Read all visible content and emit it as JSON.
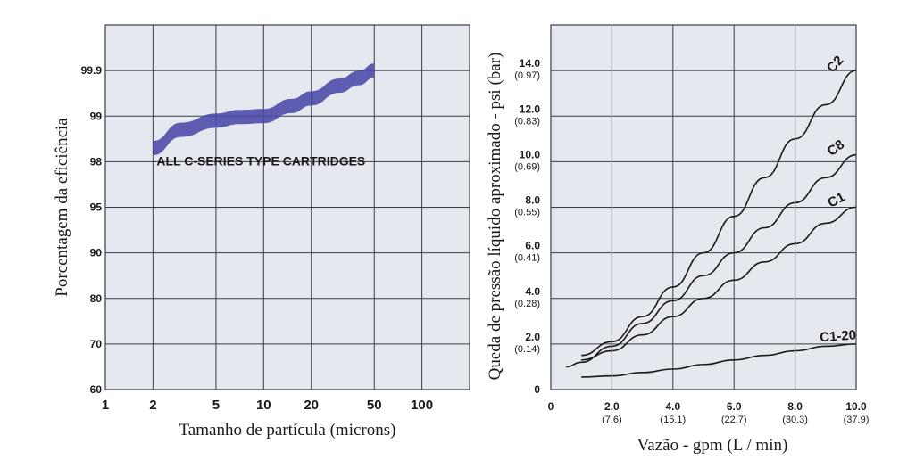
{
  "colors": {
    "plot_bg": "#e6e8ef",
    "grid": "#3a3c48",
    "band": "#4a48a8",
    "line": "#1a1a1a"
  },
  "chart_data": [
    {
      "type": "area",
      "xlabel": "Tamanho de partícula (microns)",
      "ylabel": "Porcentagem da eficiência",
      "x_scale": "log",
      "x_ticks": [
        "1",
        "2",
        "5",
        "10",
        "20",
        "50",
        "100"
      ],
      "y_ticks": [
        "60",
        "70",
        "80",
        "90",
        "95",
        "98",
        "99",
        "99.9"
      ],
      "annotation": "ALL C-SERIES TYPE CARTRIDGES",
      "grid": true,
      "series": [
        {
          "x": [
            2,
            3,
            5,
            7,
            10,
            15,
            20,
            30,
            40,
            50
          ],
          "y": [
            98.3,
            98.7,
            98.9,
            98.98,
            99.0,
            99.2,
            99.35,
            99.6,
            99.75,
            99.9
          ]
        }
      ]
    },
    {
      "type": "line",
      "xlabel": "Vazão - gpm (L / min)",
      "ylabel": "Queda de pressão líquido aproximado - psi (bar)",
      "x_ticks": [
        {
          "main": "0",
          "sub": ""
        },
        {
          "main": "2.0",
          "sub": "(7.6)"
        },
        {
          "main": "4.0",
          "sub": "(15.1)"
        },
        {
          "main": "6.0",
          "sub": "(22.7)"
        },
        {
          "main": "8.0",
          "sub": "(30.3)"
        },
        {
          "main": "10.0",
          "sub": "(37.9)"
        }
      ],
      "y_ticks": [
        {
          "main": "0",
          "sub": ""
        },
        {
          "main": "2.0",
          "sub": "(0.14)"
        },
        {
          "main": "4.0",
          "sub": "(0.28)"
        },
        {
          "main": "6.0",
          "sub": "(0.41)"
        },
        {
          "main": "8.0",
          "sub": "(0.55)"
        },
        {
          "main": "10.0",
          "sub": "(0.69)"
        },
        {
          "main": "12.0",
          "sub": "(0.83)"
        },
        {
          "main": "14.0",
          "sub": "(0.97)"
        }
      ],
      "xlim": [
        0,
        10
      ],
      "ylim": [
        0,
        16
      ],
      "grid": true,
      "series": [
        {
          "name": "C2",
          "x": [
            1,
            2,
            3,
            4,
            5,
            6,
            7,
            8,
            9,
            10
          ],
          "y": [
            1.5,
            2.1,
            3.2,
            4.5,
            6.0,
            7.6,
            9.3,
            11.0,
            12.5,
            14.0
          ]
        },
        {
          "name": "C8",
          "x": [
            0.5,
            1,
            2,
            3,
            4,
            5,
            6,
            7,
            8,
            9,
            10
          ],
          "y": [
            1.0,
            1.2,
            1.9,
            2.9,
            3.9,
            5.0,
            6.0,
            7.1,
            8.2,
            9.3,
            10.3
          ]
        },
        {
          "name": "C1",
          "x": [
            1,
            2,
            3,
            4,
            5,
            6,
            7,
            8,
            9,
            10
          ],
          "y": [
            1.3,
            1.7,
            2.4,
            3.2,
            4.0,
            4.8,
            5.6,
            6.4,
            7.3,
            8.0
          ]
        },
        {
          "name": "C1-20",
          "x": [
            1,
            2,
            3,
            4,
            5,
            6,
            7,
            8,
            9,
            10
          ],
          "y": [
            0.55,
            0.6,
            0.75,
            0.9,
            1.1,
            1.3,
            1.5,
            1.7,
            1.9,
            2.0
          ]
        }
      ]
    }
  ]
}
